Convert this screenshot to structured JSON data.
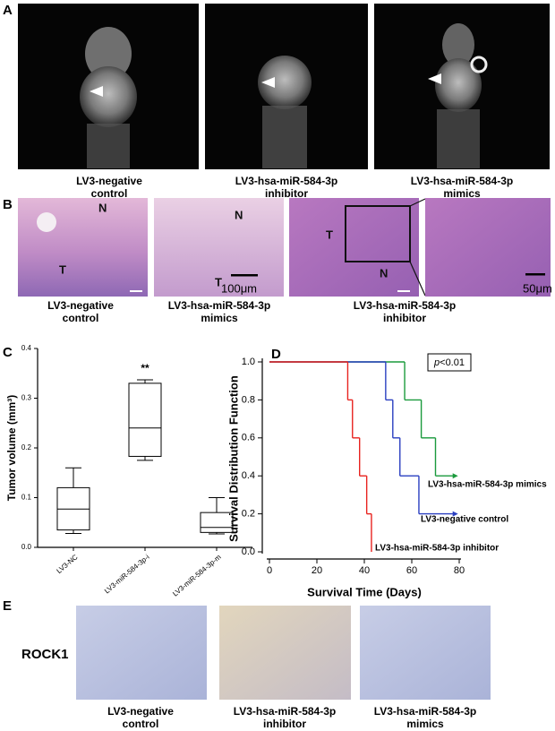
{
  "panel_a": {
    "label": "A",
    "captions": [
      [
        "LV3-negative",
        "control"
      ],
      [
        "LV3-hsa-miR-584-3p",
        "inhibitor"
      ],
      [
        "LV3-hsa-miR-584-3p",
        "mimics"
      ]
    ]
  },
  "panel_b": {
    "label": "B",
    "image_labels": [
      [
        "N",
        "T"
      ],
      [
        "N",
        "T"
      ],
      [
        "T",
        "N"
      ]
    ],
    "scale_bars": [
      "100μm",
      "50μm"
    ],
    "captions": [
      [
        "LV3-negative",
        "control"
      ],
      [
        "LV3-hsa-miR-584-3p",
        "mimics"
      ],
      [
        "LV3-hsa-miR-584-3p",
        "inhibitor"
      ]
    ]
  },
  "panel_e": {
    "label": "E",
    "stain": "ROCK1",
    "captions": [
      [
        "LV3-negative",
        "control"
      ],
      [
        "LV3-hsa-miR-584-3p",
        "inhibitor"
      ],
      [
        "LV3-hsa-miR-584-3p",
        "mimics"
      ]
    ]
  },
  "chart_data": [
    {
      "type": "box",
      "panel": "C",
      "ylabel": "Tumor volume (mm³)",
      "categories": [
        "LV3-NC",
        "LV3-miR-584-3p-i",
        "LV3-miR-584-3p-m"
      ],
      "boxes": [
        {
          "min": 0.028,
          "q1": 0.035,
          "median": 0.077,
          "q3": 0.12,
          "max": 0.16
        },
        {
          "min": 0.175,
          "q1": 0.183,
          "median": 0.24,
          "q3": 0.33,
          "max": 0.337
        },
        {
          "min": 0.027,
          "q1": 0.03,
          "median": 0.04,
          "q3": 0.07,
          "max": 0.1
        }
      ],
      "annotations": [
        {
          "category": 1,
          "text": "**"
        }
      ],
      "color": "#000000",
      "ylim": [
        0,
        0.4
      ],
      "yticks": [
        {
          "value": 0,
          "label": "0.0"
        },
        0.1,
        0.2,
        0.3,
        0.4
      ]
    },
    {
      "type": "survival",
      "panel": "D",
      "xlabel": "Survival Time (Days)",
      "ylabel": "Survival Distribution Function",
      "annotation": {
        "italic": "p",
        "text": "<0.01"
      },
      "series": [
        {
          "name": "LV3-hsa-miR-584-3p mimics",
          "color": "#1a9a3c",
          "x": [
            0,
            57,
            64,
            70,
            78
          ],
          "values": [
            1,
            0.8,
            0.6,
            0.4,
            0.4
          ]
        },
        {
          "name": "LV3-negative control",
          "color": "#2a3fc0",
          "x": [
            0,
            49,
            52,
            55,
            63,
            78
          ],
          "values": [
            1,
            0.8,
            0.6,
            0.4,
            0.2,
            0.2
          ]
        },
        {
          "name": "LV3-hsa-miR-584-3p inhibitor",
          "color": "#e8231f",
          "x": [
            0,
            33,
            35,
            38,
            41,
            43
          ],
          "values": [
            1,
            0.8,
            0.6,
            0.4,
            0.2,
            0
          ]
        }
      ],
      "xlim": [
        0,
        80
      ],
      "xticks": [
        0,
        20,
        40,
        60,
        80
      ],
      "ylim": [
        0,
        1
      ],
      "yticks": [
        {
          "value": 0,
          "label": "0.0"
        },
        0.2,
        0.4,
        0.6,
        0.8,
        {
          "value": 1,
          "label": "1.0"
        }
      ]
    }
  ]
}
